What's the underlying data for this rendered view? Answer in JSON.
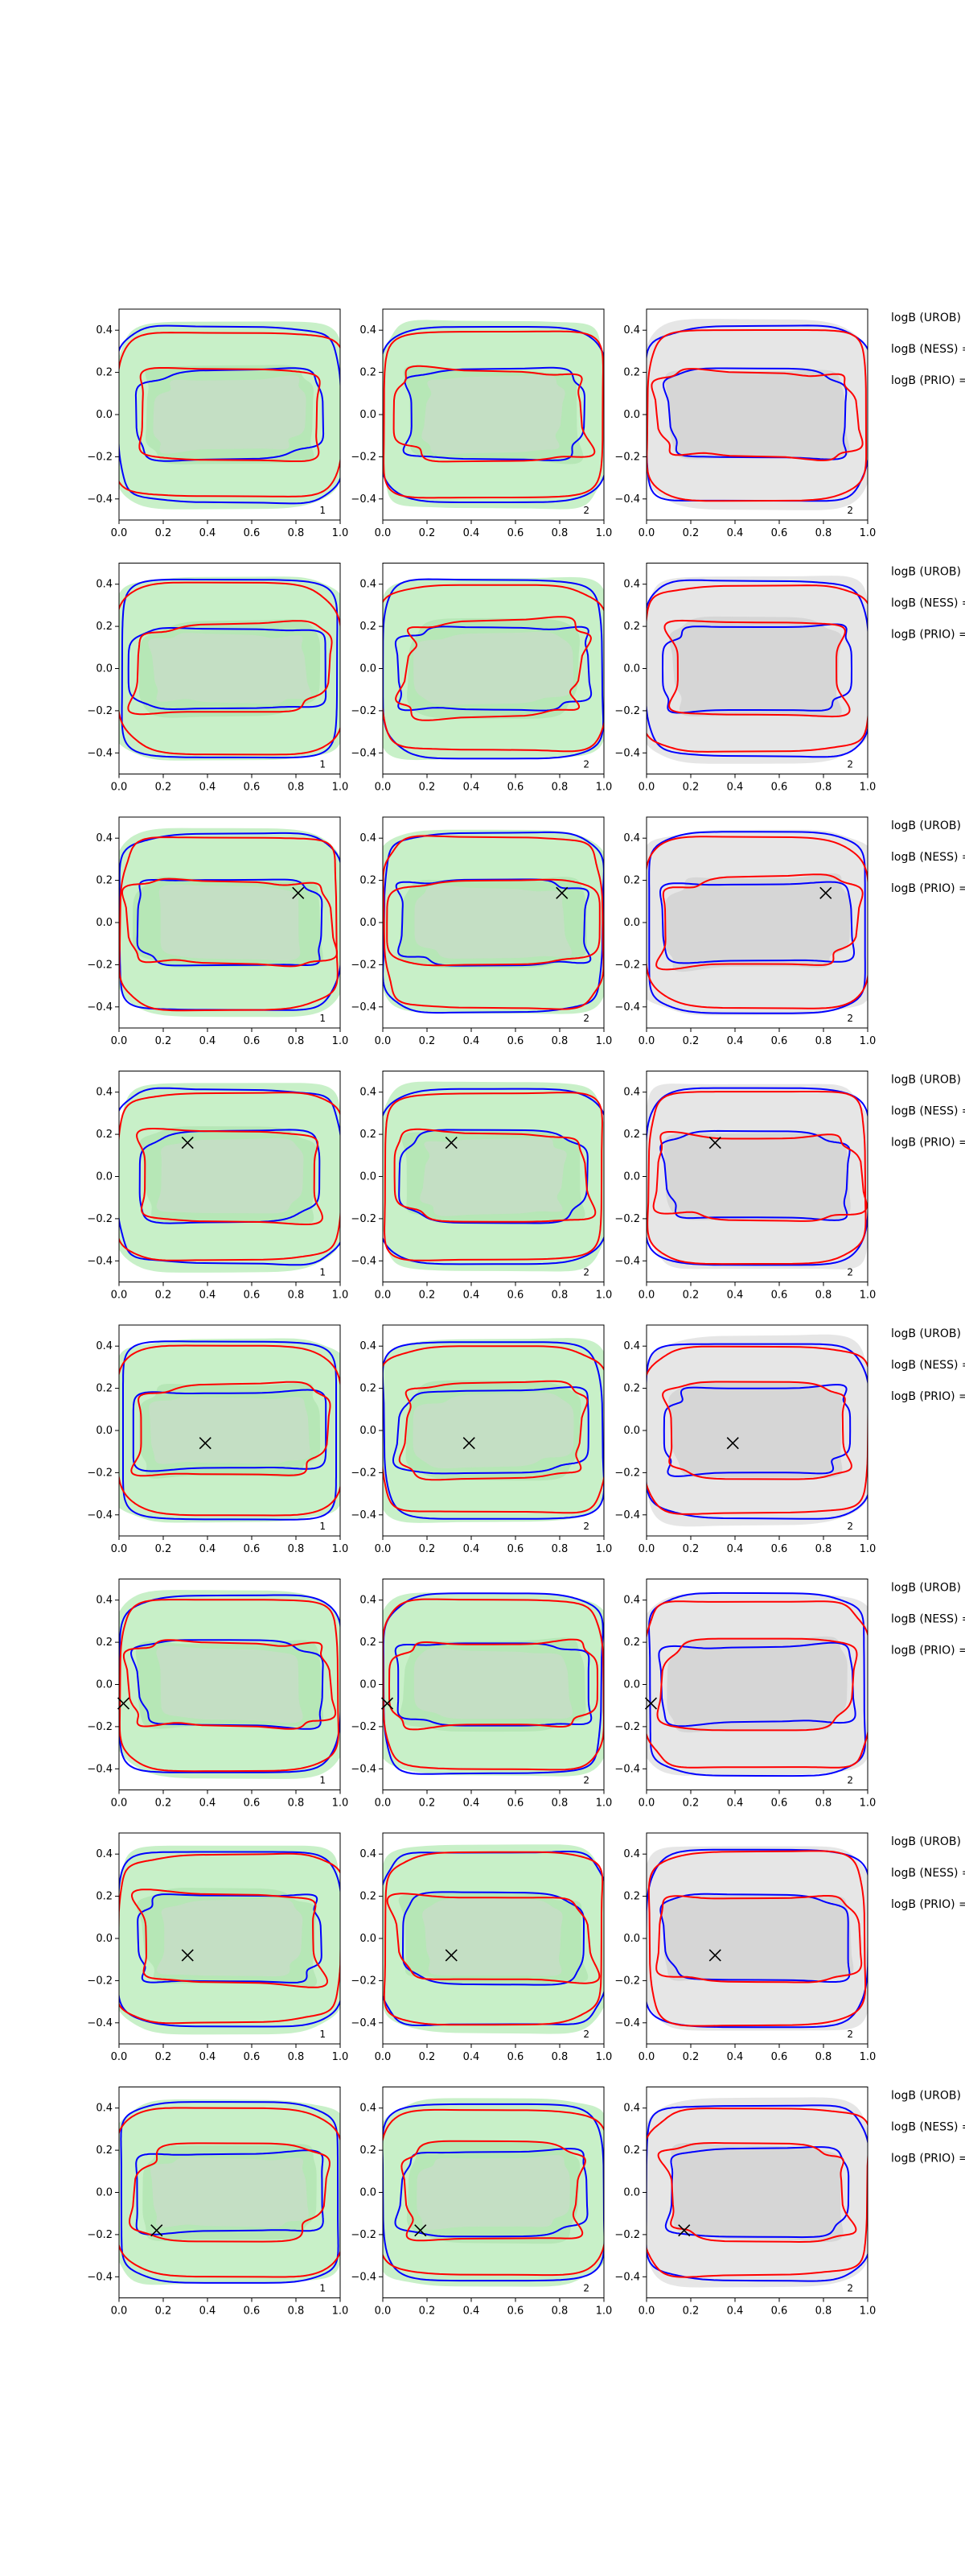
{
  "figure": {
    "rows": 8,
    "cols": 3,
    "panel_numbers": [
      "1",
      "2",
      "2"
    ],
    "logb_labels": [
      "logB (UROB) =",
      "logB (NESS) =",
      "logB (PRIO) ="
    ],
    "colors": {
      "red_contour": "#ff0000",
      "blue_contour": "#0000ff",
      "green_fill": "#c8f0c8",
      "green_inner": "#b4e6b4",
      "gray_fill": "#e6e6e6",
      "gray_inner": "#d4d4d4",
      "marker": "#000000"
    }
  },
  "chart_data": {
    "type": "contour",
    "xlim": [
      0,
      1
    ],
    "ylim": [
      -0.5,
      0.5
    ],
    "xticks": [
      0.0,
      0.2,
      0.4,
      0.6,
      0.8,
      1.0
    ],
    "yticks": [
      -0.4,
      -0.2,
      0.0,
      0.2,
      0.4
    ],
    "xtick_labels": [
      "0.0",
      "0.2",
      "0.4",
      "0.6",
      "0.8",
      "1.0"
    ],
    "ytick_labels": [
      "−0.4",
      "−0.2",
      "0.0",
      "0.2",
      "0.4"
    ],
    "column_background": [
      "green",
      "green",
      "gray"
    ],
    "markers": [
      null,
      null,
      {
        "x": 0.81,
        "y": 0.14
      },
      {
        "x": 0.31,
        "y": 0.16
      },
      {
        "x": 0.39,
        "y": -0.06
      },
      {
        "x": 0.02,
        "y": -0.09
      },
      {
        "x": 0.31,
        "y": -0.08
      },
      {
        "x": 0.17,
        "y": -0.18
      }
    ]
  }
}
